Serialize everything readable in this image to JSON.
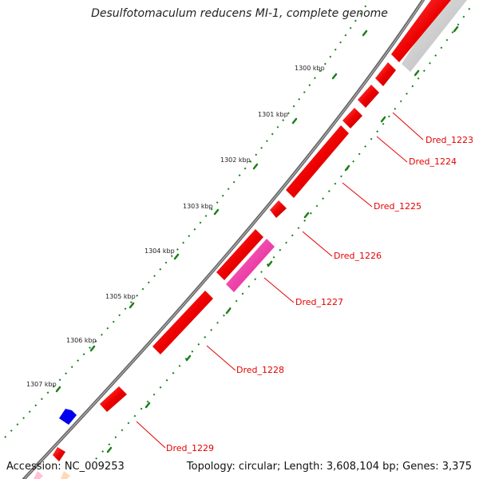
{
  "title": "Desulfotomaculum reducens MI-1, complete genome",
  "footer": {
    "accession": "Accession: NC_009253",
    "summary": "Topology: circular; Length: 3,608,104 bp; Genes: 3,375"
  },
  "ticks": [
    "1300 kbp",
    "1301 kbp",
    "1302 kbp",
    "1303 kbp",
    "1304 kbp",
    "1305 kbp",
    "1306 kbp",
    "1307 kbp"
  ],
  "genes": [
    "Dred_1223",
    "Dred_1224",
    "Dred_1225",
    "Dred_1226",
    "Dred_1227",
    "Dred_1228",
    "Dred_1229"
  ],
  "colors": {
    "gene_forward": "#ff0000",
    "gene_highlight": "#ff33aa",
    "gene_blue": "#0000ee",
    "gene_grey": "#c8c8c8",
    "backbone": "#777777",
    "tick_marks": "#1a7f1a",
    "label_text": "#e60000"
  }
}
